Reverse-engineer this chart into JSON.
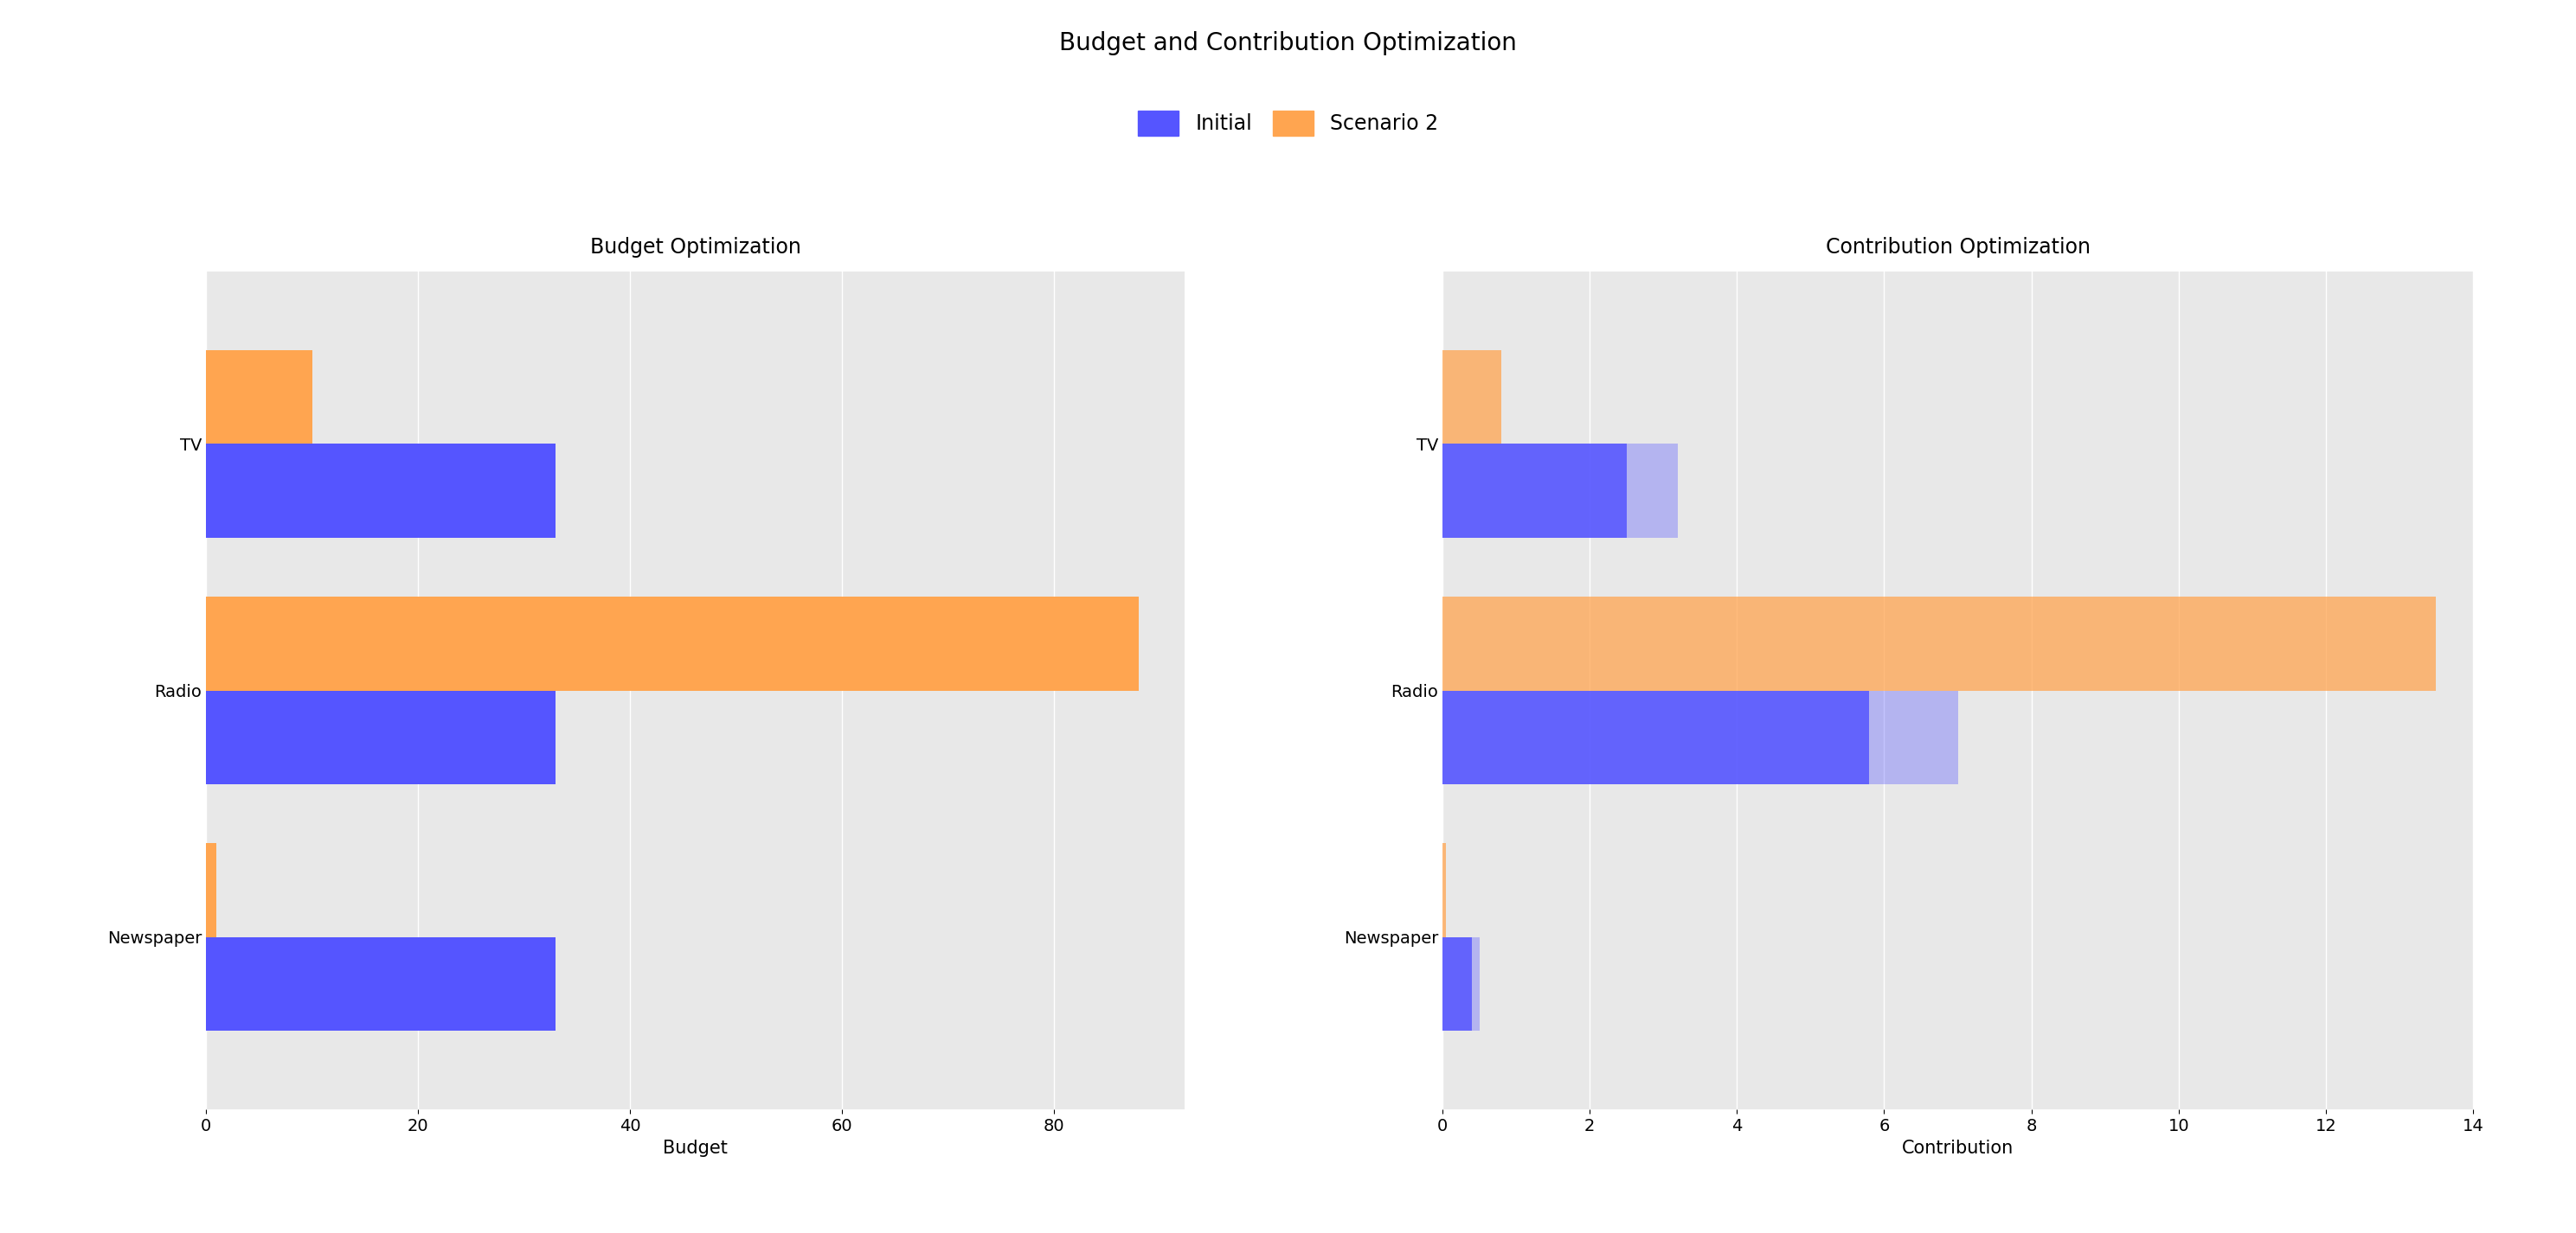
{
  "title": "Budget and Contribution Optimization",
  "legend_labels": [
    "Initial",
    "Scenario 2"
  ],
  "initial_color": "#5555ff",
  "scenario2_color": "#FFA550",
  "categories": [
    "Newspaper",
    "Radio",
    "TV"
  ],
  "budget": {
    "title": "Budget Optimization",
    "xlabel": "Budget",
    "initial": [
      33,
      33,
      33
    ],
    "scenario2": [
      1,
      88,
      10
    ]
  },
  "contribution": {
    "title": "Contribution Optimization",
    "xlabel": "Contribution",
    "initial": [
      0.4,
      5.8,
      2.5
    ],
    "initial_light": [
      0.5,
      7.0,
      3.2
    ],
    "scenario2": [
      0.05,
      13.5,
      0.8
    ],
    "xlim": [
      0,
      14
    ]
  },
  "background_color": "#e8e8e8",
  "title_fontsize": 20,
  "subtitle_fontsize": 17,
  "tick_fontsize": 14,
  "label_fontsize": 15
}
